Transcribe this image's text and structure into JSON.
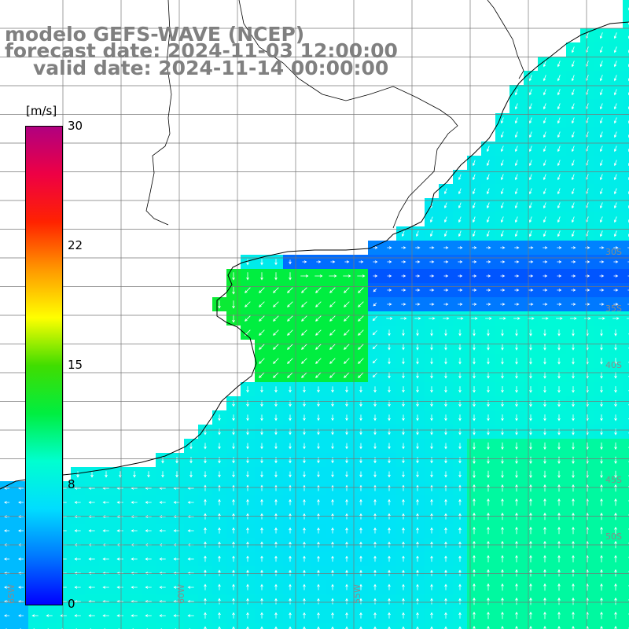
{
  "title_lines": [
    "modelo GEFS-WAVE (NCEP)",
    "forecast date: 2024-11-03 12:00:00",
    "valid date: 2024-11-14 00:00:00"
  ],
  "colorbar": {
    "unit": "[m/s]",
    "min": 0,
    "max": 30,
    "tick_labels": [
      "30",
      "22",
      "15",
      "8",
      "0"
    ],
    "tick_values": [
      30,
      22,
      15,
      8,
      0
    ],
    "colors": [
      "#0000ff",
      "#0077ff",
      "#00ddff",
      "#00ffd0",
      "#00ee40",
      "#40dd00",
      "#ffff00",
      "#ff9900",
      "#ff2200",
      "#ee0044",
      "#b00080"
    ]
  },
  "map": {
    "lat_labels": [
      "30S",
      "35S",
      "40S",
      "45S",
      "50S"
    ],
    "lon_labels": [
      "65W",
      "60W",
      "55W"
    ],
    "background": "#ffffff",
    "grid_color": "#777777",
    "coast_color": "#000000",
    "arrow_color": "#ffffff"
  }
}
